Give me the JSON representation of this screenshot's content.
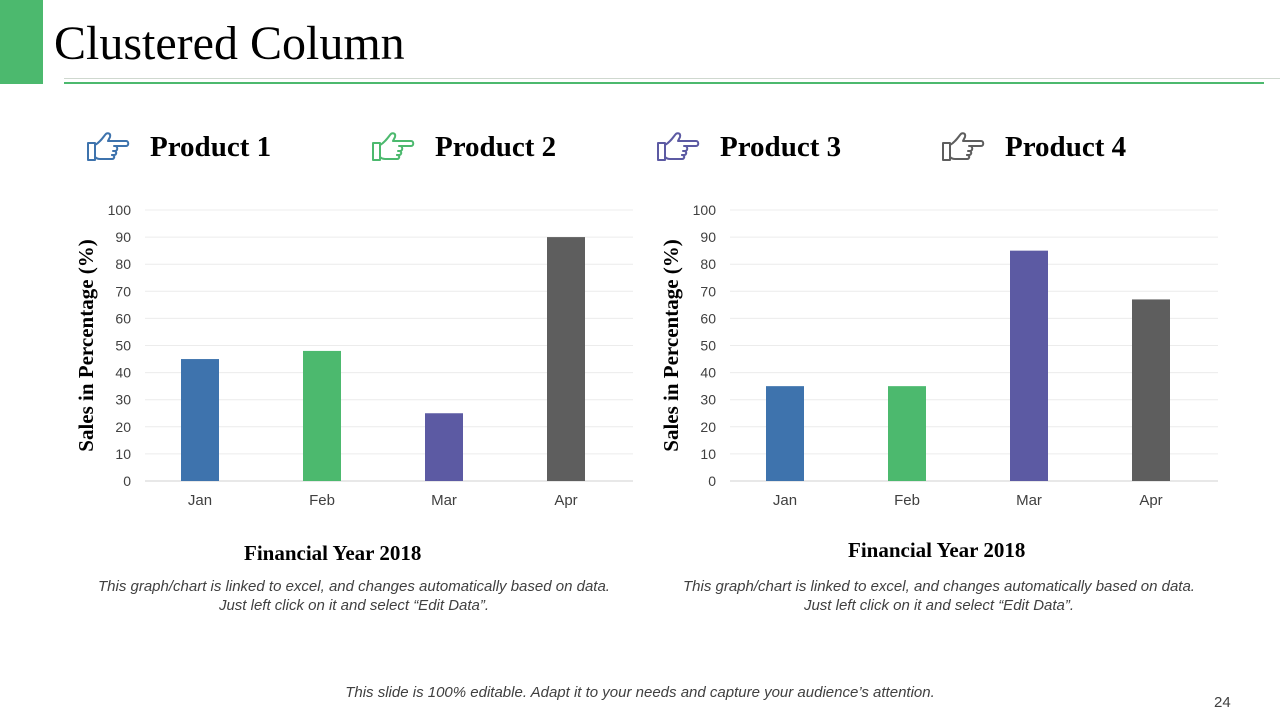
{
  "slide": {
    "title": "Clustered Column",
    "footer": "This slide is 100% editable. Adapt it to your needs and capture your audience’s attention.",
    "page_number": "24"
  },
  "legend": [
    {
      "label": "Product 1",
      "color": "#3e73ad",
      "icon": "pointing-hand-icon"
    },
    {
      "label": "Product 2",
      "color": "#4cb96e",
      "icon": "pointing-hand-icon"
    },
    {
      "label": "Product 3",
      "color": "#5c5aa3",
      "icon": "pointing-hand-icon"
    },
    {
      "label": "Product 4",
      "color": "#5e5e5e",
      "icon": "pointing-hand-icon"
    }
  ],
  "notes": {
    "chart1": "This graph/chart is linked to excel, and changes automatically based on data. Just left click on it and select “Edit Data”.",
    "chart2": "This graph/chart is linked to excel, and changes automatically based on data. Just left click on it and select “Edit Data”."
  },
  "chart_data": [
    {
      "type": "bar",
      "categories": [
        "Jan",
        "Feb",
        "Mar",
        "Apr"
      ],
      "values": [
        45,
        48,
        25,
        90
      ],
      "colors": [
        "#3e73ad",
        "#4cb96e",
        "#5c5aa3",
        "#5e5e5e"
      ],
      "title": "",
      "xlabel": "Financial Year 2018",
      "ylabel": "Sales in Percentage (%)",
      "ylim": [
        0,
        100
      ],
      "yticks": [
        0,
        10,
        20,
        30,
        40,
        50,
        60,
        70,
        80,
        90,
        100
      ],
      "grid": true
    },
    {
      "type": "bar",
      "categories": [
        "Jan",
        "Feb",
        "Mar",
        "Apr"
      ],
      "values": [
        35,
        35,
        85,
        67
      ],
      "colors": [
        "#3e73ad",
        "#4cb96e",
        "#5c5aa3",
        "#5e5e5e"
      ],
      "title": "",
      "xlabel": "Financial Year 2018",
      "ylabel": "Sales in Percentage (%)",
      "ylim": [
        0,
        100
      ],
      "yticks": [
        0,
        10,
        20,
        30,
        40,
        50,
        60,
        70,
        80,
        90,
        100
      ],
      "grid": true
    }
  ]
}
